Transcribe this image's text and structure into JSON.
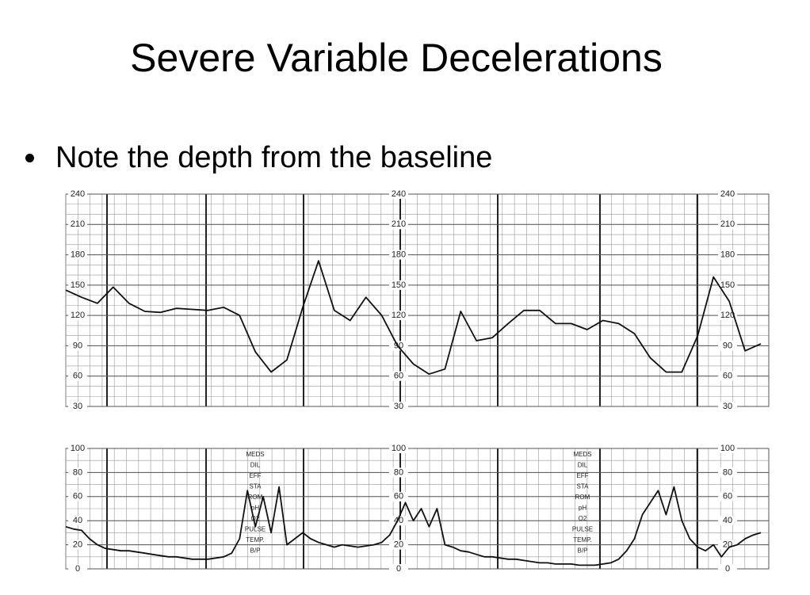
{
  "title": "Severe Variable Decelerations",
  "bullet": "Note the depth from the baseline",
  "chart_data": [
    {
      "type": "line",
      "color": "#111",
      "ylim": [
        30,
        240
      ],
      "yticks": [
        30,
        60,
        90,
        120,
        150,
        180,
        210,
        240
      ],
      "values": [
        145,
        138,
        132,
        148,
        132,
        124,
        123,
        127,
        126,
        125,
        128,
        120,
        84,
        64,
        76,
        128,
        174,
        125,
        115,
        138,
        120,
        90,
        72,
        62,
        67,
        124,
        95,
        98,
        112,
        125,
        125,
        112,
        112,
        106,
        115,
        112,
        102,
        78,
        64,
        64,
        100,
        158,
        134,
        85,
        92
      ]
    },
    {
      "type": "line",
      "color": "#111",
      "ylim": [
        0,
        100
      ],
      "yticks": [
        0,
        20,
        40,
        60,
        80,
        100
      ],
      "annotations": [
        "MEDS",
        "DIL",
        "EFF",
        "STA",
        "ROM",
        "pH",
        "O2",
        "PULSE",
        "TEMP.",
        "B/P"
      ],
      "values": [
        35,
        33,
        32,
        25,
        20,
        17,
        16,
        15,
        15,
        14,
        13,
        12,
        11,
        10,
        10,
        9,
        8,
        8,
        8,
        9,
        10,
        13,
        25,
        65,
        35,
        60,
        30,
        68,
        20,
        25,
        30,
        25,
        22,
        20,
        18,
        20,
        19,
        18,
        19,
        20,
        22,
        28,
        40,
        55,
        40,
        50,
        35,
        50,
        20,
        18,
        15,
        14,
        12,
        10,
        10,
        9,
        8,
        8,
        7,
        6,
        5,
        5,
        4,
        4,
        4,
        3,
        3,
        3,
        4,
        5,
        8,
        15,
        25,
        45,
        55,
        65,
        45,
        68,
        40,
        25,
        18,
        15,
        20,
        10,
        18,
        20,
        25,
        28,
        30
      ]
    }
  ]
}
